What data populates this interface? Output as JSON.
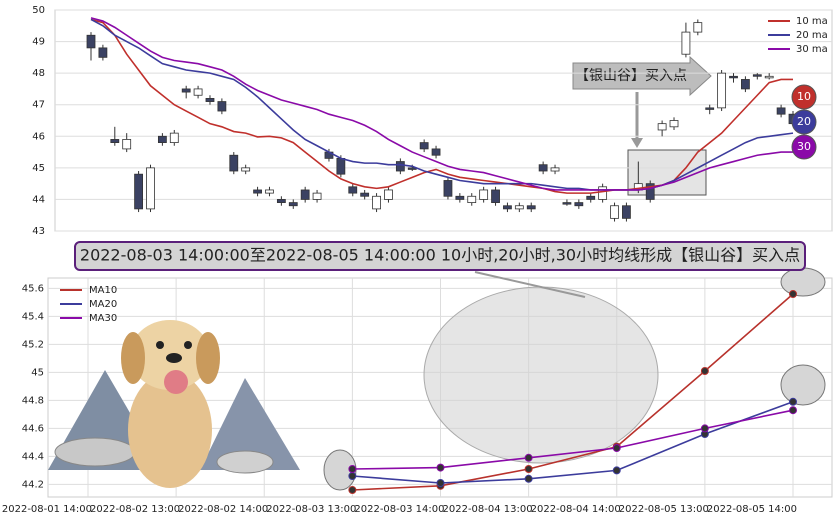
{
  "chart_data": [
    {
      "type": "candlestick",
      "ylim": [
        43,
        50
      ],
      "yticks": [
        43,
        44,
        45,
        46,
        47,
        48,
        49,
        50
      ],
      "grid": true,
      "legend": "upper right",
      "up_color": "#ffffff",
      "down_color": "#3b4263",
      "open": [
        49.2,
        48.8,
        45.9,
        45.6,
        44.8,
        43.7,
        46.0,
        45.8,
        47.5,
        47.3,
        47.2,
        47.1,
        45.4,
        44.9,
        44.3,
        44.2,
        44.0,
        43.9,
        44.3,
        44.0,
        45.5,
        45.3,
        44.4,
        44.2,
        43.7,
        44.0,
        45.2,
        45.0,
        45.8,
        45.6,
        44.6,
        44.1,
        43.9,
        44.0,
        44.3,
        43.8,
        43.7,
        43.8,
        45.1,
        44.9,
        43.9,
        43.9,
        44.1,
        44.0,
        43.4,
        43.8,
        44.3,
        44.5,
        46.2,
        46.3,
        48.6,
        49.3,
        46.9,
        46.9,
        47.9,
        47.8,
        47.95,
        47.85,
        46.9,
        46.7
      ],
      "high": [
        49.3,
        48.9,
        46.3,
        46.1,
        44.9,
        45.1,
        46.1,
        46.2,
        47.6,
        47.6,
        47.3,
        47.2,
        45.5,
        45.1,
        44.4,
        44.4,
        44.1,
        44.0,
        44.4,
        44.3,
        45.6,
        45.4,
        44.5,
        44.3,
        44.2,
        44.4,
        45.3,
        45.1,
        45.9,
        45.7,
        44.7,
        44.2,
        44.2,
        44.4,
        44.4,
        43.9,
        43.9,
        43.9,
        45.2,
        45.1,
        44.0,
        44.0,
        44.2,
        44.5,
        43.9,
        43.9,
        45.2,
        44.6,
        46.5,
        46.6,
        49.6,
        49.7,
        47.0,
        48.1,
        48.0,
        47.9,
        48.0,
        48.0,
        47.0,
        46.8
      ],
      "low": [
        48.4,
        48.4,
        45.7,
        45.5,
        43.6,
        43.6,
        45.7,
        45.7,
        47.2,
        47.2,
        47.0,
        46.7,
        44.8,
        44.8,
        44.1,
        44.1,
        43.8,
        43.7,
        43.9,
        43.9,
        45.2,
        44.7,
        44.1,
        44.0,
        43.6,
        43.9,
        44.8,
        44.9,
        45.5,
        45.3,
        44.0,
        43.9,
        43.8,
        43.9,
        43.8,
        43.6,
        43.6,
        43.6,
        44.8,
        44.8,
        43.8,
        43.7,
        43.9,
        43.9,
        43.3,
        43.3,
        44.2,
        43.9,
        46.0,
        46.2,
        48.5,
        49.2,
        46.7,
        46.8,
        47.7,
        47.4,
        47.8,
        47.8,
        46.6,
        46.3
      ],
      "close": [
        48.8,
        48.5,
        45.8,
        45.9,
        43.7,
        45.0,
        45.8,
        46.1,
        47.4,
        47.5,
        47.1,
        46.8,
        44.9,
        45.0,
        44.2,
        44.3,
        43.9,
        43.8,
        44.0,
        44.2,
        45.3,
        44.8,
        44.2,
        44.1,
        44.1,
        44.3,
        44.9,
        44.95,
        45.6,
        45.4,
        44.1,
        44.0,
        44.1,
        44.3,
        43.9,
        43.7,
        43.8,
        43.7,
        44.9,
        45.0,
        43.85,
        43.8,
        44.0,
        44.4,
        43.8,
        43.4,
        44.5,
        44.0,
        46.4,
        46.5,
        49.3,
        49.6,
        46.85,
        48.0,
        47.85,
        47.5,
        47.9,
        47.9,
        46.7,
        46.4
      ],
      "series": [
        {
          "name": "10 ma",
          "color": "#c0302c",
          "values": [
            49.7,
            49.6,
            49.2,
            48.6,
            48.1,
            47.6,
            47.3,
            47.0,
            46.8,
            46.6,
            46.4,
            46.3,
            46.15,
            46.1,
            45.98,
            46.0,
            45.95,
            45.8,
            45.5,
            45.2,
            44.9,
            44.65,
            44.5,
            44.4,
            44.35,
            44.4,
            44.55,
            44.7,
            44.85,
            44.95,
            44.8,
            44.7,
            44.65,
            44.6,
            44.55,
            44.5,
            44.45,
            44.4,
            44.35,
            44.25,
            44.2,
            44.2,
            44.2,
            44.25,
            44.3,
            44.3,
            44.35,
            44.4,
            44.45,
            44.6,
            45.0,
            45.5,
            45.8,
            46.1,
            46.5,
            46.9,
            47.3,
            47.7,
            47.8,
            47.8
          ]
        },
        {
          "name": "20 ma",
          "color": "#3c3c9c",
          "values": [
            49.7,
            49.5,
            49.2,
            49.0,
            48.8,
            48.55,
            48.3,
            48.2,
            48.1,
            48.05,
            48.0,
            47.9,
            47.8,
            47.55,
            47.25,
            46.9,
            46.55,
            46.2,
            45.9,
            45.7,
            45.5,
            45.3,
            45.2,
            45.15,
            45.15,
            45.1,
            45.1,
            45.05,
            44.9,
            44.8,
            44.7,
            44.6,
            44.55,
            44.5,
            44.5,
            44.5,
            44.5,
            44.5,
            44.45,
            44.4,
            44.35,
            44.35,
            44.3,
            44.3,
            44.3,
            44.3,
            44.3,
            44.35,
            44.45,
            44.6,
            44.8,
            45.0,
            45.2,
            45.4,
            45.6,
            45.8,
            45.95,
            46.0,
            46.05,
            46.1
          ]
        },
        {
          "name": "30 ma",
          "color": "#8a0aa8",
          "values": [
            49.75,
            49.65,
            49.45,
            49.2,
            48.95,
            48.7,
            48.5,
            48.4,
            48.35,
            48.3,
            48.2,
            48.1,
            47.9,
            47.65,
            47.45,
            47.3,
            47.15,
            47.05,
            46.95,
            46.85,
            46.7,
            46.6,
            46.5,
            46.35,
            46.15,
            45.9,
            45.7,
            45.5,
            45.35,
            45.2,
            45.05,
            44.95,
            44.9,
            44.85,
            44.75,
            44.65,
            44.55,
            44.45,
            44.35,
            44.3,
            44.3,
            44.3,
            44.3,
            44.3,
            44.3,
            44.3,
            44.3,
            44.35,
            44.45,
            44.55,
            44.7,
            44.85,
            45.0,
            45.1,
            45.2,
            45.3,
            45.4,
            45.45,
            45.5,
            45.5
          ]
        }
      ],
      "annotation": "【银山谷】买入点",
      "badges": [
        "10",
        "20",
        "30"
      ]
    },
    {
      "type": "line",
      "title": "2022-08-03 14:00:00至2022-08-05 14:00:00 10小时,20小时,30小时均线形成【银山谷】买入点",
      "categories": [
        "2022-08-01 14:00",
        "2022-08-02 13:00",
        "2022-08-02 14:00",
        "2022-08-03 13:00",
        "2022-08-03 14:00",
        "2022-08-04 13:00",
        "2022-08-04 14:00",
        "2022-08-05 13:00",
        "2022-08-05 14:00"
      ],
      "ylim": [
        44.11,
        45.66
      ],
      "yticks": [
        44.2,
        44.4,
        44.6,
        44.8,
        45.0,
        45.2,
        45.4,
        45.6
      ],
      "grid": true,
      "legend": "upper left",
      "series": [
        {
          "name": "MA10",
          "color": "#b8322c",
          "values": [
            null,
            null,
            null,
            44.16,
            44.19,
            44.31,
            44.47,
            45.01,
            45.56
          ]
        },
        {
          "name": "MA20",
          "color": "#3c3c9c",
          "values": [
            null,
            null,
            null,
            44.26,
            44.21,
            44.24,
            44.3,
            44.56,
            44.79
          ]
        },
        {
          "name": "MA30",
          "color": "#8a0aa8",
          "values": [
            null,
            null,
            null,
            44.31,
            44.32,
            44.39,
            44.46,
            44.6,
            44.73
          ]
        }
      ]
    }
  ]
}
